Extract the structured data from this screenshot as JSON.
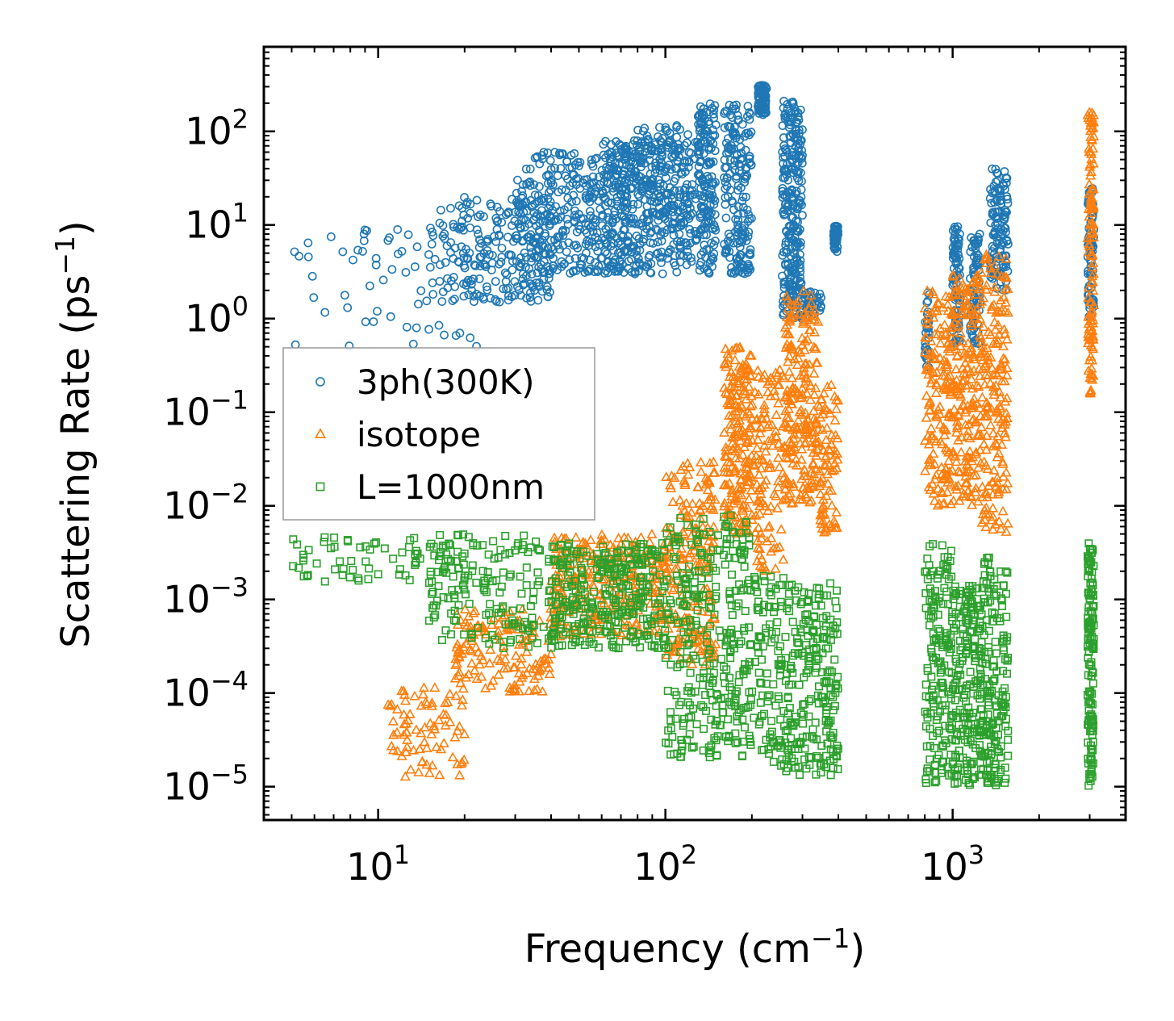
{
  "chart_data": {
    "type": "scatter",
    "title": "",
    "xlabel": "Frequency (cm",
    "xlabel_sup": "−1",
    "xlabel_end": ")",
    "ylabel": "Scattering Rate (ps",
    "ylabel_sup": "−1",
    "ylabel_end": ")",
    "xscale": "log",
    "yscale": "log",
    "xlim": [
      4,
      4000
    ],
    "ylim": [
      4.4e-06,
      800
    ],
    "x_ticks": [
      {
        "value": 10,
        "base": "10",
        "exp": "1"
      },
      {
        "value": 100,
        "base": "10",
        "exp": "2"
      },
      {
        "value": 1000,
        "base": "10",
        "exp": "3"
      }
    ],
    "y_ticks": [
      {
        "value": 1e-05,
        "base": "10",
        "exp": "−5"
      },
      {
        "value": 0.0001,
        "base": "10",
        "exp": "−4"
      },
      {
        "value": 0.001,
        "base": "10",
        "exp": "−3"
      },
      {
        "value": 0.01,
        "base": "10",
        "exp": "−2"
      },
      {
        "value": 0.1,
        "base": "10",
        "exp": "−1"
      },
      {
        "value": 1,
        "base": "10",
        "exp": "0"
      },
      {
        "value": 10,
        "base": "10",
        "exp": "1"
      },
      {
        "value": 100,
        "base": "10",
        "exp": "2"
      }
    ],
    "legend_position": "center-left",
    "series": [
      {
        "name": "3ph(300K)",
        "marker": "circle",
        "color": "#1f77b4",
        "clusters": [
          {
            "x": [
              5,
              22
            ],
            "y": [
              0.5,
              10
            ],
            "n": 60
          },
          {
            "x": [
              15,
              40
            ],
            "y": [
              1.5,
              20
            ],
            "n": 220
          },
          {
            "x": [
              30,
              80
            ],
            "y": [
              3,
              60
            ],
            "n": 360
          },
          {
            "x": [
              60,
              130
            ],
            "y": [
              3,
              80
            ],
            "n": 340
          },
          {
            "x": [
              80,
              120
            ],
            "y": [
              10,
              120
            ],
            "n": 120
          },
          {
            "x": [
              130,
              150
            ],
            "y": [
              3,
              200
            ],
            "n": 160
          },
          {
            "x": [
              160,
              200
            ],
            "y": [
              3,
              200
            ],
            "n": 180
          },
          {
            "x": [
              210,
              225
            ],
            "y": [
              150,
              320
            ],
            "n": 80
          },
          {
            "x": [
              255,
              300
            ],
            "y": [
              1,
              220
            ],
            "n": 260
          },
          {
            "x": [
              300,
              350
            ],
            "y": [
              1,
              2
            ],
            "n": 40
          },
          {
            "x": [
              385,
              400
            ],
            "y": [
              5,
              10
            ],
            "n": 40
          },
          {
            "x": [
              800,
              830
            ],
            "y": [
              0.3,
              2
            ],
            "n": 30
          },
          {
            "x": [
              1000,
              1060
            ],
            "y": [
              0.5,
              10
            ],
            "n": 80
          },
          {
            "x": [
              1150,
              1250
            ],
            "y": [
              0.5,
              8
            ],
            "n": 80
          },
          {
            "x": [
              1350,
              1560
            ],
            "y": [
              2,
              40
            ],
            "n": 120
          },
          {
            "x": [
              2950,
              3100
            ],
            "y": [
              1,
              25
            ],
            "n": 80
          }
        ]
      },
      {
        "name": "isotope",
        "marker": "triangle",
        "color": "#ff7f0e",
        "clusters": [
          {
            "x": [
              10.5,
              20
            ],
            "y": [
              1.2e-05,
              0.00012
            ],
            "n": 80
          },
          {
            "x": [
              18,
              40
            ],
            "y": [
              0.0001,
              0.0008
            ],
            "n": 140
          },
          {
            "x": [
              40,
              100
            ],
            "y": [
              0.0004,
              0.005
            ],
            "n": 280
          },
          {
            "x": [
              100,
              150
            ],
            "y": [
              0.0002,
              0.03
            ],
            "n": 200
          },
          {
            "x": [
              160,
              200
            ],
            "y": [
              0.005,
              0.5
            ],
            "n": 200
          },
          {
            "x": [
              200,
              260
            ],
            "y": [
              0.002,
              0.3
            ],
            "n": 120
          },
          {
            "x": [
              260,
              340
            ],
            "y": [
              0.01,
              2
            ],
            "n": 220
          },
          {
            "x": [
              340,
              400
            ],
            "y": [
              0.005,
              0.2
            ],
            "n": 80
          },
          {
            "x": [
              800,
              1000
            ],
            "y": [
              0.01,
              2
            ],
            "n": 160
          },
          {
            "x": [
              1000,
              1250
            ],
            "y": [
              0.01,
              3
            ],
            "n": 180
          },
          {
            "x": [
              1250,
              1560
            ],
            "y": [
              0.005,
              5
            ],
            "n": 180
          },
          {
            "x": [
              2950,
              3100
            ],
            "y": [
              0.15,
              160
            ],
            "n": 120
          }
        ]
      },
      {
        "name": "L=1000nm",
        "marker": "square",
        "color": "#2ca02c",
        "clusters": [
          {
            "x": [
              5,
              20
            ],
            "y": [
              0.0015,
              0.005
            ],
            "n": 70
          },
          {
            "x": [
              15,
              40
            ],
            "y": [
              0.0003,
              0.005
            ],
            "n": 160
          },
          {
            "x": [
              40,
              100
            ],
            "y": [
              0.0003,
              0.004
            ],
            "n": 300
          },
          {
            "x": [
              100,
              200
            ],
            "y": [
              2e-05,
              0.008
            ],
            "n": 320
          },
          {
            "x": [
              200,
              260
            ],
            "y": [
              1.5e-05,
              0.002
            ],
            "n": 100
          },
          {
            "x": [
              260,
              400
            ],
            "y": [
              1.2e-05,
              0.0015
            ],
            "n": 220
          },
          {
            "x": [
              800,
              1000
            ],
            "y": [
              1e-05,
              0.004
            ],
            "n": 160
          },
          {
            "x": [
              1000,
              1250
            ],
            "y": [
              1e-05,
              0.0015
            ],
            "n": 180
          },
          {
            "x": [
              1250,
              1560
            ],
            "y": [
              1e-05,
              0.003
            ],
            "n": 180
          },
          {
            "x": [
              2950,
              3100
            ],
            "y": [
              1e-05,
              0.004
            ],
            "n": 140
          }
        ]
      }
    ]
  }
}
